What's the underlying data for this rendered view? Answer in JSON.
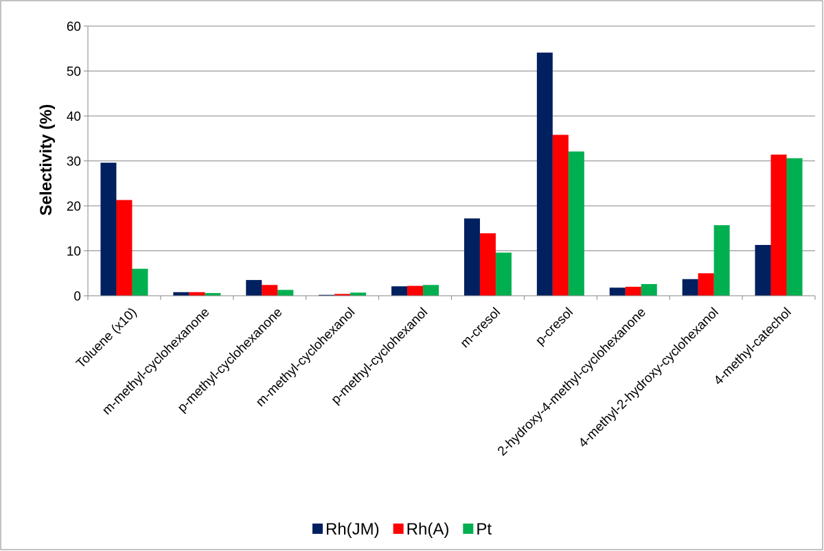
{
  "chart_data": {
    "type": "bar",
    "title": "",
    "xlabel": "",
    "ylabel": "Selectivity (%)",
    "ylim": [
      0,
      60
    ],
    "yticks": [
      0,
      10,
      20,
      30,
      40,
      50,
      60
    ],
    "grid": true,
    "legend_position": "bottom",
    "categories": [
      "Toluene (x10)",
      "m-methyl-cyclohexanone",
      "p-methyl-cyclohexanone",
      "m-methyl-cyclohexanol",
      "p-methyl-cyclohexanol",
      "m-cresol",
      "p-cresol",
      "2-hydroxy-4-methyl-cyclohexanone",
      "4-methyl-2-hydroxy-cyclohexanol",
      "4-methyl-catechol"
    ],
    "series": [
      {
        "name": "Rh(JM)",
        "color": "#002060",
        "values": [
          29.6,
          0.8,
          3.5,
          0.2,
          2.1,
          17.2,
          54.1,
          1.8,
          3.7,
          11.3
        ]
      },
      {
        "name": "Rh(A)",
        "color": "#ff0000",
        "values": [
          21.3,
          0.8,
          2.4,
          0.4,
          2.2,
          13.9,
          35.8,
          2.0,
          5.0,
          31.4
        ]
      },
      {
        "name": "Pt",
        "color": "#00b050",
        "values": [
          6.0,
          0.6,
          1.3,
          0.7,
          2.4,
          9.6,
          32.1,
          2.6,
          15.7,
          30.6
        ]
      }
    ]
  }
}
